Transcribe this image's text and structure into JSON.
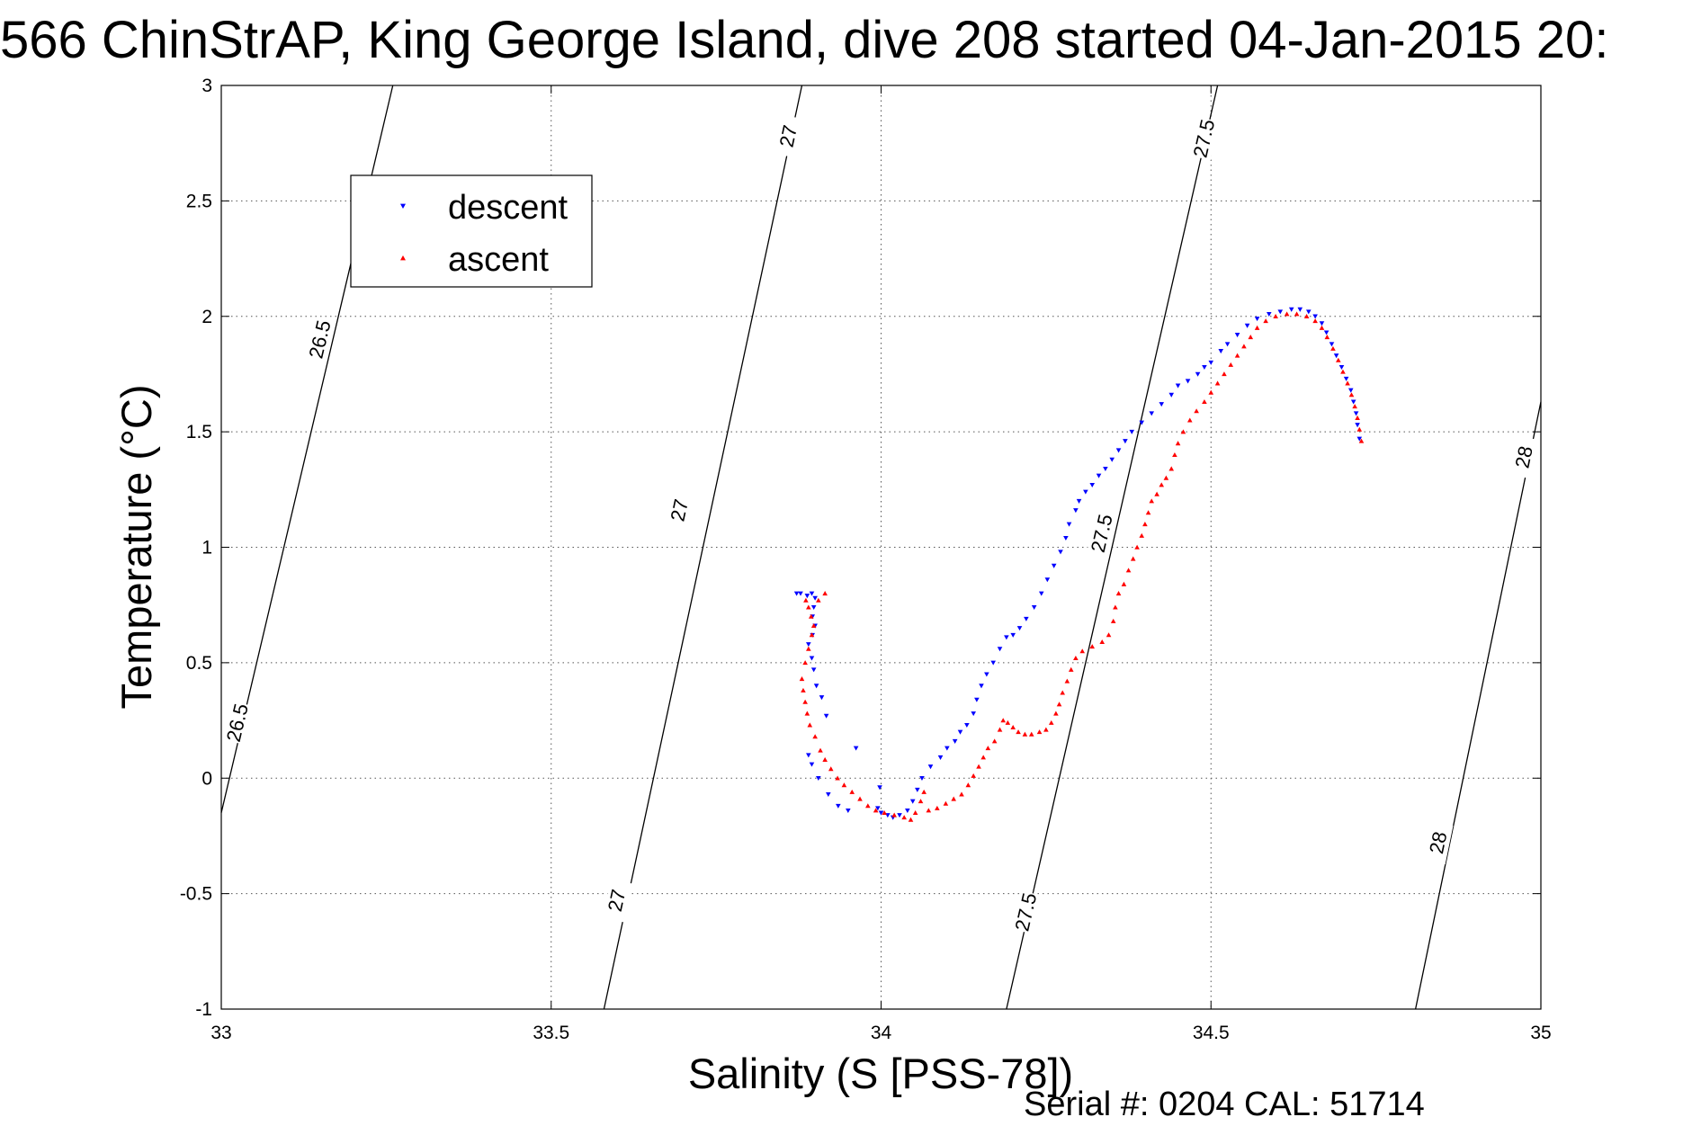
{
  "chart_data": {
    "type": "scatter",
    "title": "566 ChinStrAP, King George Island, dive 208 started 04-Jan-2015 20:",
    "xlabel": "Salinity (S [PSS-78])",
    "ylabel": "Temperature (°C)",
    "xlim": [
      33,
      35
    ],
    "ylim": [
      -1,
      3
    ],
    "xticks": [
      "33",
      "33.5",
      "34",
      "34.5",
      "35"
    ],
    "yticks": [
      "-1",
      "-0.5",
      "0",
      "0.5",
      "1",
      "1.5",
      "2",
      "2.5",
      "3"
    ],
    "grid": true,
    "legend_position": "top-left",
    "footer": "Serial #: 0204  CAL: 51714",
    "density_contours": [
      {
        "level": "26.5",
        "points": [
          [
            33.0,
            -0.15
          ],
          [
            33.26,
            3.0
          ]
        ],
        "label_positions": [
          [
            33.025,
            0.24
          ],
          [
            33.15,
            1.9
          ]
        ]
      },
      {
        "level": "27",
        "points": [
          [
            33.58,
            -1.0
          ],
          [
            33.88,
            3.0
          ]
        ],
        "label_positions": [
          [
            33.6,
            -0.53
          ],
          [
            33.695,
            1.16
          ],
          [
            33.86,
            2.78
          ]
        ]
      },
      {
        "level": "27.5",
        "points": [
          [
            34.19,
            -1.0
          ],
          [
            34.51,
            3.0
          ]
        ],
        "label_positions": [
          [
            34.22,
            -0.58
          ],
          [
            34.335,
            1.06
          ],
          [
            34.49,
            2.77
          ]
        ]
      },
      {
        "level": "28",
        "points": [
          [
            34.81,
            -1.0
          ],
          [
            35.0,
            1.63
          ]
        ],
        "label_positions": [
          [
            34.845,
            -0.28
          ],
          [
            34.975,
            1.39
          ]
        ]
      }
    ],
    "series": [
      {
        "name": "descent",
        "color": "#0000ff",
        "marker": "triangle-down",
        "points": [
          [
            34.725,
            1.47
          ],
          [
            34.722,
            1.53
          ],
          [
            34.72,
            1.58
          ],
          [
            34.716,
            1.63
          ],
          [
            34.712,
            1.68
          ],
          [
            34.705,
            1.73
          ],
          [
            34.698,
            1.78
          ],
          [
            34.69,
            1.83
          ],
          [
            34.683,
            1.88
          ],
          [
            34.675,
            1.93
          ],
          [
            34.668,
            1.97
          ],
          [
            34.658,
            2.0
          ],
          [
            34.648,
            2.02
          ],
          [
            34.635,
            2.03
          ],
          [
            34.622,
            2.03
          ],
          [
            34.605,
            2.02
          ],
          [
            34.588,
            2.01
          ],
          [
            34.57,
            1.99
          ],
          [
            34.555,
            1.96
          ],
          [
            34.54,
            1.92
          ],
          [
            34.525,
            1.88
          ],
          [
            34.515,
            1.85
          ],
          [
            34.5,
            1.8
          ],
          [
            34.49,
            1.78
          ],
          [
            34.48,
            1.75
          ],
          [
            34.465,
            1.72
          ],
          [
            34.45,
            1.7
          ],
          [
            34.44,
            1.66
          ],
          [
            34.425,
            1.62
          ],
          [
            34.41,
            1.58
          ],
          [
            34.395,
            1.54
          ],
          [
            34.38,
            1.5
          ],
          [
            34.37,
            1.46
          ],
          [
            34.36,
            1.42
          ],
          [
            34.35,
            1.38
          ],
          [
            34.34,
            1.34
          ],
          [
            34.33,
            1.31
          ],
          [
            34.32,
            1.27
          ],
          [
            34.31,
            1.24
          ],
          [
            34.3,
            1.2
          ],
          [
            34.295,
            1.16
          ],
          [
            34.285,
            1.1
          ],
          [
            34.28,
            1.04
          ],
          [
            34.272,
            0.98
          ],
          [
            34.262,
            0.92
          ],
          [
            34.252,
            0.86
          ],
          [
            34.243,
            0.8
          ],
          [
            34.232,
            0.74
          ],
          [
            34.22,
            0.69
          ],
          [
            34.21,
            0.65
          ],
          [
            34.2,
            0.62
          ],
          [
            34.19,
            0.61
          ],
          [
            34.18,
            0.56
          ],
          [
            34.17,
            0.5
          ],
          [
            34.16,
            0.45
          ],
          [
            34.152,
            0.4
          ],
          [
            34.145,
            0.34
          ],
          [
            34.14,
            0.28
          ],
          [
            34.13,
            0.23
          ],
          [
            34.12,
            0.2
          ],
          [
            34.112,
            0.16
          ],
          [
            34.1,
            0.13
          ],
          [
            34.09,
            0.09
          ],
          [
            34.075,
            0.05
          ],
          [
            34.062,
            0.0
          ],
          [
            34.055,
            -0.05
          ],
          [
            34.048,
            -0.1
          ],
          [
            34.04,
            -0.14
          ],
          [
            34.028,
            -0.16
          ],
          [
            34.018,
            -0.17
          ],
          [
            34.01,
            -0.16
          ],
          [
            34.0,
            -0.15
          ],
          [
            33.995,
            -0.13
          ],
          [
            33.998,
            -0.04
          ],
          [
            33.962,
            0.13
          ],
          [
            33.95,
            -0.14
          ],
          [
            33.935,
            -0.12
          ],
          [
            33.92,
            -0.07
          ],
          [
            33.905,
            0.0
          ],
          [
            33.895,
            0.06
          ],
          [
            33.89,
            0.1
          ],
          [
            33.917,
            0.27
          ],
          [
            33.91,
            0.35
          ],
          [
            33.902,
            0.4
          ],
          [
            33.898,
            0.47
          ],
          [
            33.895,
            0.52
          ],
          [
            33.89,
            0.58
          ],
          [
            33.896,
            0.62
          ],
          [
            33.9,
            0.66
          ],
          [
            33.896,
            0.7
          ],
          [
            33.898,
            0.74
          ],
          [
            33.9,
            0.78
          ],
          [
            33.895,
            0.8
          ],
          [
            33.888,
            0.79
          ],
          [
            33.878,
            0.8
          ],
          [
            33.872,
            0.8
          ]
        ]
      },
      {
        "name": "ascent",
        "color": "#ff0000",
        "marker": "triangle-up",
        "points": [
          [
            34.728,
            1.46
          ],
          [
            34.725,
            1.51
          ],
          [
            34.722,
            1.56
          ],
          [
            34.718,
            1.61
          ],
          [
            34.713,
            1.66
          ],
          [
            34.707,
            1.71
          ],
          [
            34.7,
            1.76
          ],
          [
            34.693,
            1.81
          ],
          [
            34.685,
            1.86
          ],
          [
            34.676,
            1.91
          ],
          [
            34.668,
            1.95
          ],
          [
            34.658,
            1.98
          ],
          [
            34.645,
            2.0
          ],
          [
            34.63,
            2.01
          ],
          [
            34.615,
            2.01
          ],
          [
            34.598,
            2.0
          ],
          [
            34.583,
            1.98
          ],
          [
            34.57,
            1.95
          ],
          [
            34.56,
            1.91
          ],
          [
            34.55,
            1.87
          ],
          [
            34.54,
            1.83
          ],
          [
            34.53,
            1.79
          ],
          [
            34.52,
            1.75
          ],
          [
            34.51,
            1.71
          ],
          [
            34.5,
            1.67
          ],
          [
            34.49,
            1.63
          ],
          [
            34.478,
            1.59
          ],
          [
            34.468,
            1.55
          ],
          [
            34.458,
            1.5
          ],
          [
            34.45,
            1.45
          ],
          [
            34.445,
            1.4
          ],
          [
            34.44,
            1.34
          ],
          [
            34.432,
            1.3
          ],
          [
            34.425,
            1.27
          ],
          [
            34.418,
            1.23
          ],
          [
            34.41,
            1.2
          ],
          [
            34.405,
            1.15
          ],
          [
            34.4,
            1.1
          ],
          [
            34.395,
            1.05
          ],
          [
            34.388,
            1.0
          ],
          [
            34.382,
            0.95
          ],
          [
            34.375,
            0.9
          ],
          [
            34.368,
            0.84
          ],
          [
            34.36,
            0.8
          ],
          [
            34.355,
            0.74
          ],
          [
            34.352,
            0.68
          ],
          [
            34.345,
            0.62
          ],
          [
            34.335,
            0.59
          ],
          [
            34.32,
            0.57
          ],
          [
            34.305,
            0.55
          ],
          [
            34.295,
            0.52
          ],
          [
            34.288,
            0.47
          ],
          [
            34.282,
            0.42
          ],
          [
            34.275,
            0.37
          ],
          [
            34.27,
            0.32
          ],
          [
            34.265,
            0.28
          ],
          [
            34.258,
            0.24
          ],
          [
            34.25,
            0.21
          ],
          [
            34.24,
            0.2
          ],
          [
            34.228,
            0.19
          ],
          [
            34.218,
            0.19
          ],
          [
            34.208,
            0.2
          ],
          [
            34.2,
            0.22
          ],
          [
            34.192,
            0.24
          ],
          [
            34.185,
            0.25
          ],
          [
            34.18,
            0.21
          ],
          [
            34.172,
            0.16
          ],
          [
            34.162,
            0.13
          ],
          [
            34.155,
            0.09
          ],
          [
            34.148,
            0.05
          ],
          [
            34.14,
            0.01
          ],
          [
            34.132,
            -0.03
          ],
          [
            34.122,
            -0.07
          ],
          [
            34.11,
            -0.09
          ],
          [
            34.098,
            -0.11
          ],
          [
            34.085,
            -0.13
          ],
          [
            34.072,
            -0.14
          ],
          [
            34.06,
            -0.1
          ],
          [
            34.065,
            -0.06
          ],
          [
            34.052,
            -0.15
          ],
          [
            34.045,
            -0.18
          ],
          [
            34.035,
            -0.17
          ],
          [
            34.02,
            -0.16
          ],
          [
            34.005,
            -0.15
          ],
          [
            33.992,
            -0.14
          ],
          [
            33.98,
            -0.12
          ],
          [
            33.968,
            -0.09
          ],
          [
            33.956,
            -0.06
          ],
          [
            33.944,
            -0.03
          ],
          [
            33.934,
            0.0
          ],
          [
            33.924,
            0.04
          ],
          [
            33.915,
            0.08
          ],
          [
            33.908,
            0.12
          ],
          [
            33.9,
            0.18
          ],
          [
            33.892,
            0.23
          ],
          [
            33.888,
            0.28
          ],
          [
            33.885,
            0.33
          ],
          [
            33.882,
            0.38
          ],
          [
            33.88,
            0.43
          ],
          [
            33.885,
            0.5
          ],
          [
            33.89,
            0.56
          ],
          [
            33.895,
            0.62
          ],
          [
            33.898,
            0.66
          ],
          [
            33.894,
            0.7
          ],
          [
            33.89,
            0.74
          ],
          [
            33.886,
            0.77
          ],
          [
            33.915,
            0.8
          ],
          [
            33.905,
            0.77
          ]
        ]
      }
    ]
  }
}
